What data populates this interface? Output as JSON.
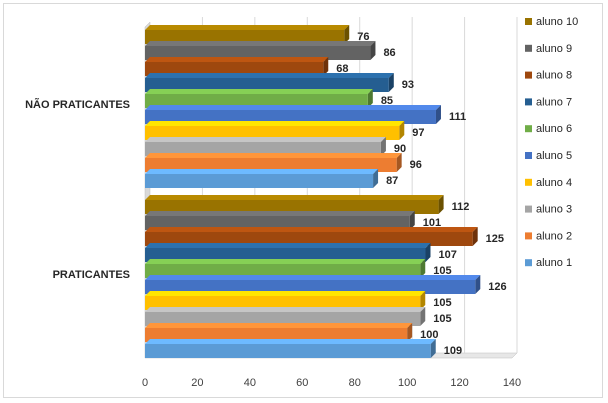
{
  "chart_data": {
    "type": "bar",
    "orientation": "horizontal",
    "style": "3d",
    "categories": [
      "NÃO PRATICANTES",
      "PRATICANTES"
    ],
    "series": [
      {
        "name": "aluno 1",
        "values": [
          87,
          109
        ],
        "color": "#5b9bd5"
      },
      {
        "name": "aluno 2",
        "values": [
          96,
          100
        ],
        "color": "#ed7d31"
      },
      {
        "name": "aluno 3",
        "values": [
          90,
          105
        ],
        "color": "#a5a5a5"
      },
      {
        "name": "aluno 4",
        "values": [
          97,
          105
        ],
        "color": "#ffc000"
      },
      {
        "name": "aluno 5",
        "values": [
          111,
          126
        ],
        "color": "#4472c4"
      },
      {
        "name": "aluno 6",
        "values": [
          85,
          105
        ],
        "color": "#70ad47"
      },
      {
        "name": "aluno 7",
        "values": [
          93,
          107
        ],
        "color": "#255e91"
      },
      {
        "name": "aluno 8",
        "values": [
          68,
          125
        ],
        "color": "#9e480e"
      },
      {
        "name": "aluno 9",
        "values": [
          86,
          101
        ],
        "color": "#636363"
      },
      {
        "name": "aluno 10",
        "values": [
          76,
          112
        ],
        "color": "#997300"
      }
    ],
    "xlim": [
      0,
      140
    ],
    "xticks": [
      "0",
      "20",
      "40",
      "60",
      "80",
      "100",
      "120",
      "140"
    ],
    "grid": true,
    "legend_position": "right",
    "title": "",
    "xlabel": "",
    "ylabel": ""
  }
}
